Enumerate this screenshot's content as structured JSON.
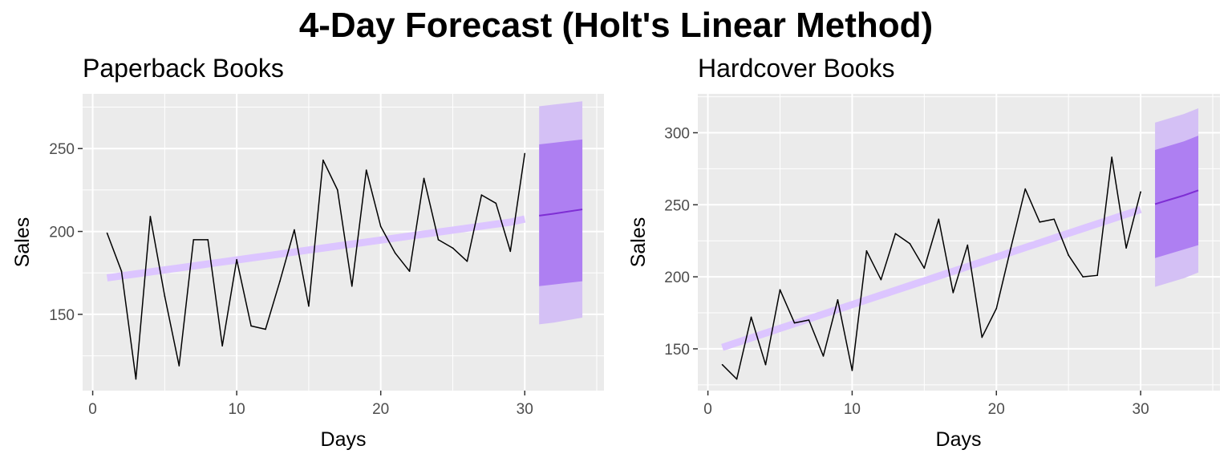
{
  "title": "4-Day Forecast (Holt's Linear Method)",
  "chart_data": [
    {
      "type": "line",
      "title": "Paperback Books",
      "xlabel": "Days",
      "ylabel": "Sales",
      "xlim": [
        -0.7,
        35.5
      ],
      "ylim": [
        104,
        283
      ],
      "xticks": [
        0,
        10,
        20,
        30
      ],
      "yticks": [
        150,
        200,
        250
      ],
      "grid": true,
      "legend": "none",
      "colors": {
        "panel": "#ebebeb",
        "grid": "#ffffff",
        "actual": "#000000",
        "fitted": "#dcc5ff",
        "pi80": "#ae7ff2",
        "pi95": "#d4c0f5",
        "forecast": "#7e2ed4"
      },
      "series": [
        {
          "kind": "actual",
          "x": [
            1,
            2,
            3,
            4,
            5,
            6,
            7,
            8,
            9,
            10,
            11,
            12,
            13,
            14,
            15,
            16,
            17,
            18,
            19,
            20,
            21,
            22,
            23,
            24,
            25,
            26,
            27,
            28,
            29,
            30
          ],
          "y": [
            199,
            176,
            111,
            209,
            161,
            119,
            195,
            195,
            131,
            183,
            143,
            141,
            170,
            201,
            155,
            243,
            225,
            167,
            237,
            203,
            187,
            176,
            232,
            195,
            190,
            182,
            222,
            217,
            188,
            247
          ]
        },
        {
          "kind": "fitted",
          "x": [
            1,
            2,
            3,
            4,
            5,
            6,
            7,
            8,
            9,
            10,
            11,
            12,
            13,
            14,
            15,
            16,
            17,
            18,
            19,
            20,
            21,
            22,
            23,
            24,
            25,
            26,
            27,
            28,
            29,
            30
          ],
          "y": [
            172,
            173.2,
            174.4,
            175.6,
            176.8,
            178,
            179.2,
            180.4,
            181.6,
            182.8,
            184,
            185.2,
            186.4,
            187.6,
            188.8,
            190,
            191.2,
            192.4,
            193.6,
            194.8,
            196,
            197.2,
            198.4,
            199.6,
            200.8,
            202,
            203.2,
            204.4,
            205.6,
            207.5
          ]
        },
        {
          "kind": "forecast",
          "x": [
            31,
            32,
            33,
            34
          ],
          "mean": [
            209.5,
            210.7,
            212,
            213.3
          ],
          "lo80": [
            167,
            168,
            169,
            170
          ],
          "hi80": [
            252.5,
            253.5,
            254.5,
            255.5
          ],
          "lo95": [
            144,
            145,
            146.5,
            148
          ],
          "hi95": [
            275.5,
            276.5,
            277.5,
            278.5
          ]
        }
      ]
    },
    {
      "type": "line",
      "title": "Hardcover Books",
      "xlabel": "Days",
      "ylabel": "Sales",
      "xlim": [
        -0.7,
        35.5
      ],
      "ylim": [
        121,
        327
      ],
      "xticks": [
        0,
        10,
        20,
        30
      ],
      "yticks": [
        150,
        200,
        250,
        300
      ],
      "grid": true,
      "legend": "none",
      "colors": {
        "panel": "#ebebeb",
        "grid": "#ffffff",
        "actual": "#000000",
        "fitted": "#dcc5ff",
        "pi80": "#ae7ff2",
        "pi95": "#d4c0f5",
        "forecast": "#7e2ed4"
      },
      "series": [
        {
          "kind": "actual",
          "x": [
            1,
            2,
            3,
            4,
            5,
            6,
            7,
            8,
            9,
            10,
            11,
            12,
            13,
            14,
            15,
            16,
            17,
            18,
            19,
            20,
            21,
            22,
            23,
            24,
            25,
            26,
            27,
            28,
            29,
            30
          ],
          "y": [
            139,
            129,
            172,
            139,
            191,
            168,
            170,
            145,
            184,
            135,
            218,
            198,
            230,
            223,
            206,
            240,
            189,
            222,
            158,
            178,
            220,
            261,
            238,
            240,
            215,
            200,
            201,
            283,
            220,
            259
          ]
        },
        {
          "kind": "fitted",
          "x": [
            1,
            2,
            3,
            4,
            5,
            6,
            7,
            8,
            9,
            10,
            11,
            12,
            13,
            14,
            15,
            16,
            17,
            18,
            19,
            20,
            21,
            22,
            23,
            24,
            25,
            26,
            27,
            28,
            29,
            30
          ],
          "y": [
            151,
            154.3,
            157.6,
            160.9,
            164.2,
            167.5,
            170.8,
            174.1,
            177.4,
            180.7,
            184,
            187.3,
            190.6,
            193.9,
            197.2,
            200.5,
            203.8,
            207.1,
            210.4,
            213.7,
            217,
            220.3,
            223.6,
            226.9,
            230.2,
            233.5,
            236.8,
            240.1,
            243.4,
            246.7
          ]
        },
        {
          "kind": "forecast",
          "x": [
            31,
            32,
            33,
            34
          ],
          "mean": [
            250.5,
            253.5,
            256.5,
            260
          ],
          "lo80": [
            213,
            216,
            219,
            222
          ],
          "hi80": [
            288,
            291,
            294,
            298
          ],
          "lo95": [
            193,
            196,
            199,
            203
          ],
          "hi95": [
            307,
            310,
            313,
            317
          ]
        }
      ]
    }
  ]
}
